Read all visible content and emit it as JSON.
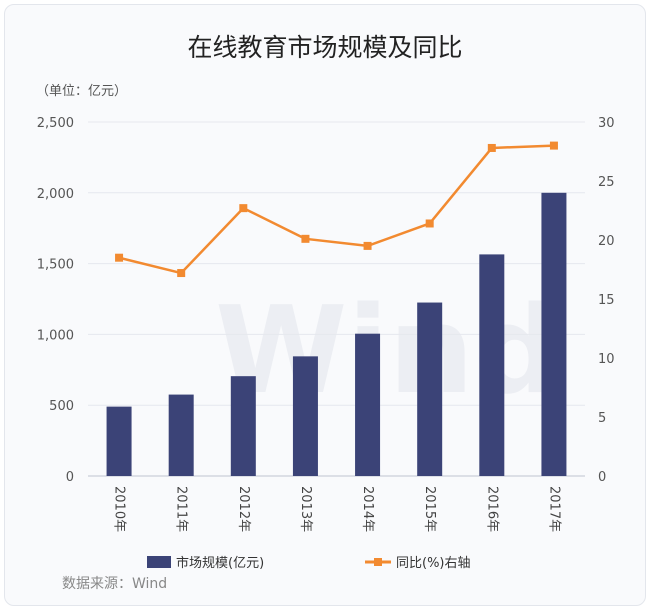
{
  "chart_data": {
    "type": "bar+line",
    "title": "在线教育市场规模及同比",
    "unit_label": "（单位：亿元）",
    "categories": [
      "2010年",
      "2011年",
      "2012年",
      "2013年",
      "2014年",
      "2015年",
      "2016年",
      "2017年"
    ],
    "left_axis": {
      "ylim": [
        0,
        2500
      ],
      "ticks": [
        "0",
        "500",
        "1,000",
        "1,500",
        "2,000",
        "2,500"
      ],
      "tick_values": [
        0,
        500,
        1000,
        1500,
        2000,
        2500
      ]
    },
    "right_axis": {
      "ylim": [
        0,
        30
      ],
      "ticks": [
        "0",
        "5",
        "10",
        "15",
        "20",
        "25",
        "30"
      ],
      "tick_values": [
        0,
        5,
        10,
        15,
        20,
        25,
        30
      ]
    },
    "series": [
      {
        "name": "市场规模(亿元)",
        "type": "bar",
        "axis": "left",
        "color": "#3b4377",
        "values": [
          490,
          575,
          705,
          845,
          1005,
          1225,
          1565,
          2000
        ]
      },
      {
        "name": "同比(%)右轴",
        "type": "line",
        "axis": "right",
        "color": "#f28a30",
        "values": [
          18.5,
          17.2,
          22.7,
          20.1,
          19.5,
          21.4,
          27.8,
          28.0
        ]
      }
    ],
    "grid": true,
    "legend_position": "bottom",
    "source": "数据来源：Wind",
    "watermark": "Wind"
  }
}
